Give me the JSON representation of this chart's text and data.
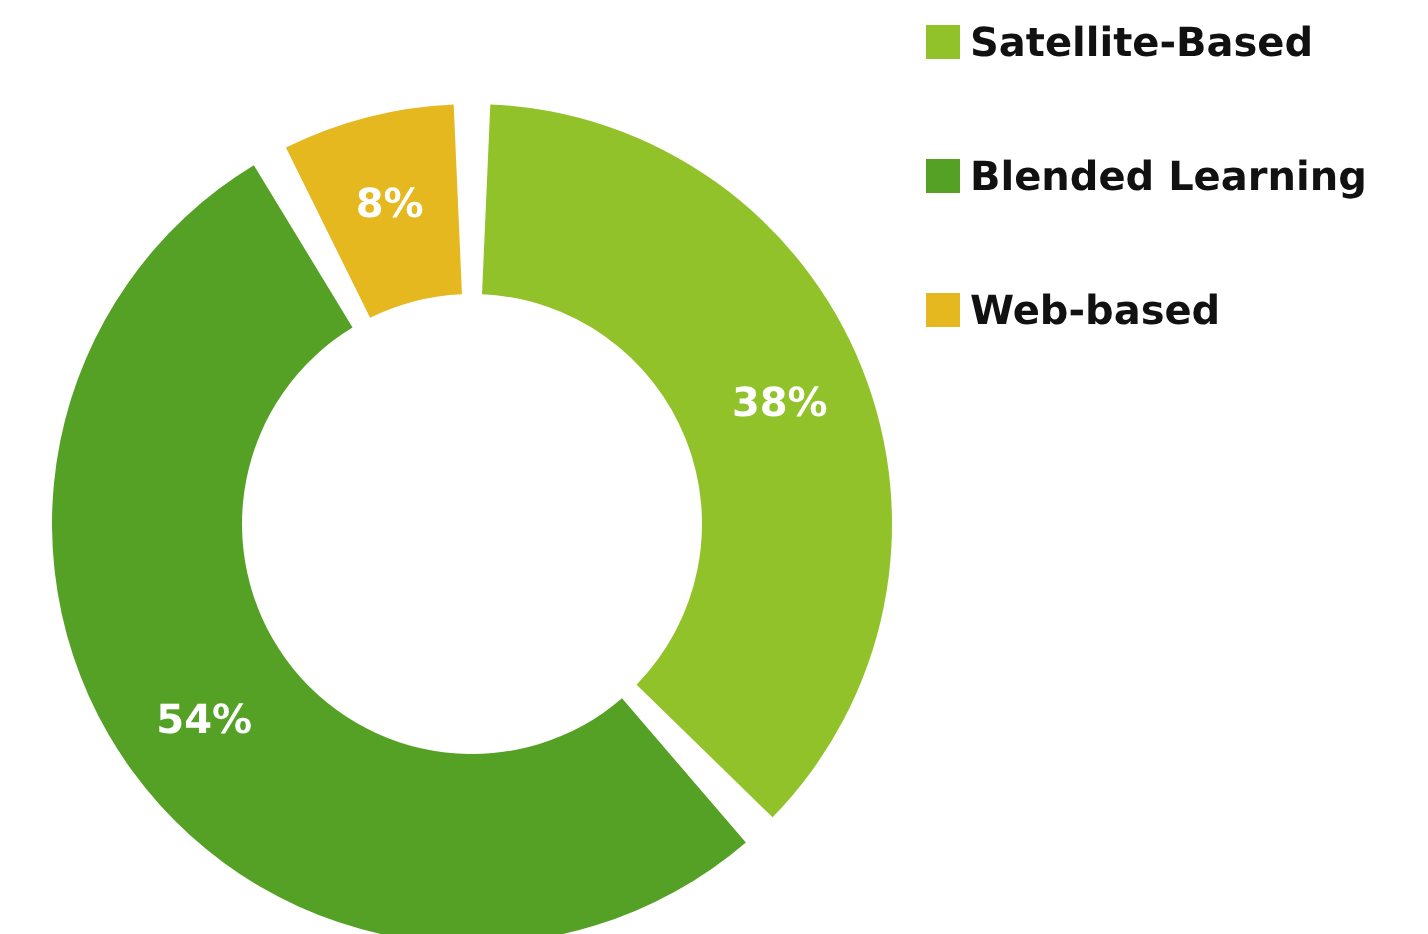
{
  "chart_data": {
    "type": "donut",
    "categories": [
      "Satellite-Based",
      "Blended Learning",
      "Web-based"
    ],
    "values": [
      38,
      54,
      8
    ],
    "colors": [
      "#92c22a",
      "#55a125",
      "#e6b820"
    ],
    "value_labels": [
      "38%",
      "54%",
      "8%"
    ],
    "legend": "top right"
  }
}
